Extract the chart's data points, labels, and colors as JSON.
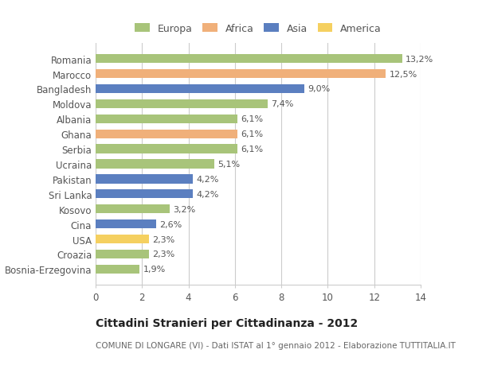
{
  "categories": [
    "Romania",
    "Marocco",
    "Bangladesh",
    "Moldova",
    "Albania",
    "Ghana",
    "Serbia",
    "Ucraina",
    "Pakistan",
    "Sri Lanka",
    "Kosovo",
    "Cina",
    "USA",
    "Croazia",
    "Bosnia-Erzegovina"
  ],
  "values": [
    13.2,
    12.5,
    9.0,
    7.4,
    6.1,
    6.1,
    6.1,
    5.1,
    4.2,
    4.2,
    3.2,
    2.6,
    2.3,
    2.3,
    1.9
  ],
  "labels": [
    "13,2%",
    "12,5%",
    "9,0%",
    "7,4%",
    "6,1%",
    "6,1%",
    "6,1%",
    "5,1%",
    "4,2%",
    "4,2%",
    "3,2%",
    "2,6%",
    "2,3%",
    "2,3%",
    "1,9%"
  ],
  "continents": [
    "Europa",
    "Africa",
    "Asia",
    "Europa",
    "Europa",
    "Africa",
    "Europa",
    "Europa",
    "Asia",
    "Asia",
    "Europa",
    "Asia",
    "America",
    "Europa",
    "Europa"
  ],
  "colors": {
    "Europa": "#a8c47a",
    "Africa": "#f0b07a",
    "Asia": "#5b7fc0",
    "America": "#f5d060"
  },
  "legend_order": [
    "Europa",
    "Africa",
    "Asia",
    "America"
  ],
  "title": "Cittadini Stranieri per Cittadinanza - 2012",
  "subtitle": "COMUNE DI LONGARE (VI) - Dati ISTAT al 1° gennaio 2012 - Elaborazione TUTTITALIA.IT",
  "xlim": [
    0,
    14
  ],
  "xticks": [
    0,
    2,
    4,
    6,
    8,
    10,
    12,
    14
  ],
  "background_color": "#ffffff",
  "grid_color": "#cccccc",
  "bar_height": 0.6
}
